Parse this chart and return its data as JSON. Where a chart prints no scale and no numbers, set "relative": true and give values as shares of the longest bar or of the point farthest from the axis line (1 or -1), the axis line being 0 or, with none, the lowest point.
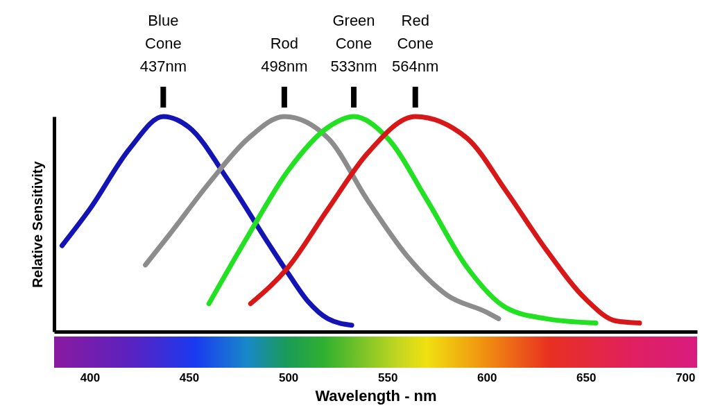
{
  "chart_data": {
    "type": "line",
    "relative": true,
    "xlabel": "Wavelength - nm",
    "ylabel": "Relative Sensitivity",
    "xlim": [
      382,
      706
    ],
    "xticks": [
      400,
      450,
      500,
      550,
      600,
      650,
      700
    ],
    "tick_labels": "x",
    "grid": false,
    "marker": "none",
    "line_style": "solid",
    "series": [
      {
        "color": "#1414b4",
        "x": [
          386,
          400,
          420,
          437,
          450,
          470,
          490,
          500,
          510,
          520,
          532
        ],
        "values": [
          0.4,
          0.57,
          0.85,
          1.0,
          0.95,
          0.7,
          0.41,
          0.27,
          0.14,
          0.06,
          0.03
        ]
      },
      {
        "color": "#8c8c8c",
        "x": [
          428,
          440,
          460,
          480,
          498,
          520,
          540,
          560,
          580,
          600,
          606
        ],
        "values": [
          0.31,
          0.45,
          0.69,
          0.9,
          1.0,
          0.9,
          0.61,
          0.35,
          0.17,
          0.09,
          0.06
        ]
      },
      {
        "color": "#22e022",
        "x": [
          460,
          480,
          500,
          520,
          533,
          550,
          570,
          590,
          610,
          630,
          655
        ],
        "values": [
          0.13,
          0.45,
          0.75,
          0.95,
          1.0,
          0.9,
          0.61,
          0.3,
          0.11,
          0.06,
          0.04
        ]
      },
      {
        "color": "#d81818",
        "x": [
          481,
          500,
          520,
          540,
          564,
          590,
          610,
          630,
          650,
          665,
          677
        ],
        "values": [
          0.13,
          0.3,
          0.57,
          0.83,
          1.0,
          0.9,
          0.65,
          0.38,
          0.15,
          0.05,
          0.04
        ]
      }
    ],
    "annotations": [
      {
        "text": "Blue Cone 437nm",
        "x": 437,
        "y": 1
      },
      {
        "text": "Rod 498nm",
        "x": 498,
        "y": 1
      },
      {
        "text": "Green Cone 533nm",
        "x": 533,
        "y": 1
      },
      {
        "text": "Red Cone 564nm",
        "x": 564,
        "y": 1
      }
    ]
  }
}
